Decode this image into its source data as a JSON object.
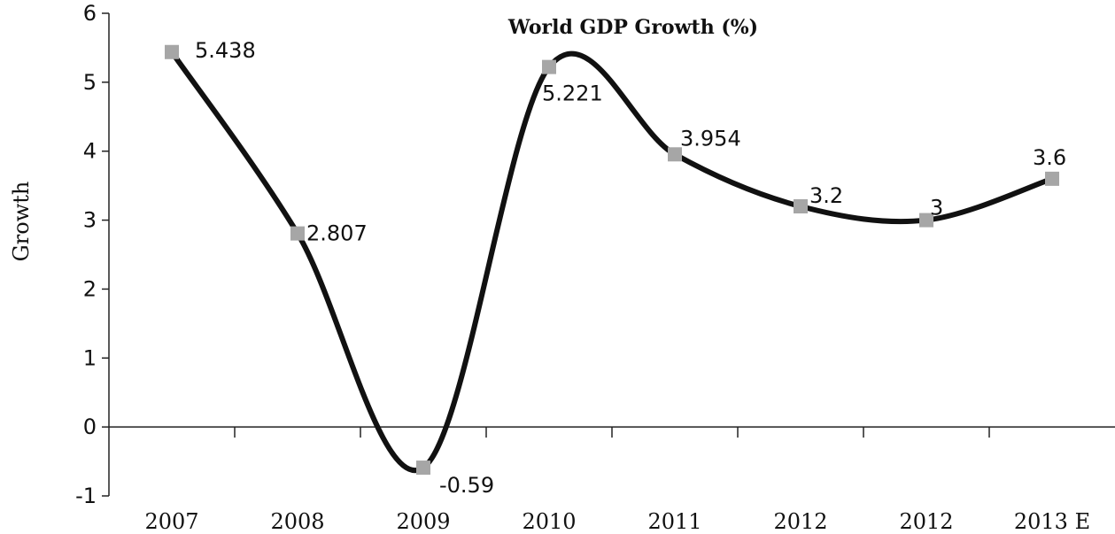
{
  "chart_data": {
    "type": "line",
    "title": "World GDP Growth (%)",
    "xlabel": "",
    "ylabel": "Growth",
    "categories": [
      "2007",
      "2008",
      "2009",
      "2010",
      "2011",
      "2012",
      "2012",
      "2013 E"
    ],
    "series": [
      {
        "values": [
          5.438,
          2.807,
          -0.59,
          5.221,
          3.954,
          3.2,
          3,
          3.6
        ],
        "data_labels": [
          "5.438",
          "2.807",
          "-0.59",
          "5.221",
          "3.954",
          "3.2",
          "3",
          "3.6"
        ]
      }
    ],
    "ylim": [
      -1,
      6
    ],
    "yticks": [
      "-1",
      "0",
      "1",
      "2",
      "3",
      "4",
      "5",
      "6"
    ],
    "grid": false,
    "legend": "none",
    "line_color": "#111111",
    "marker_color": "#a6a6a6",
    "marker_shape": "square",
    "smooth": true
  }
}
